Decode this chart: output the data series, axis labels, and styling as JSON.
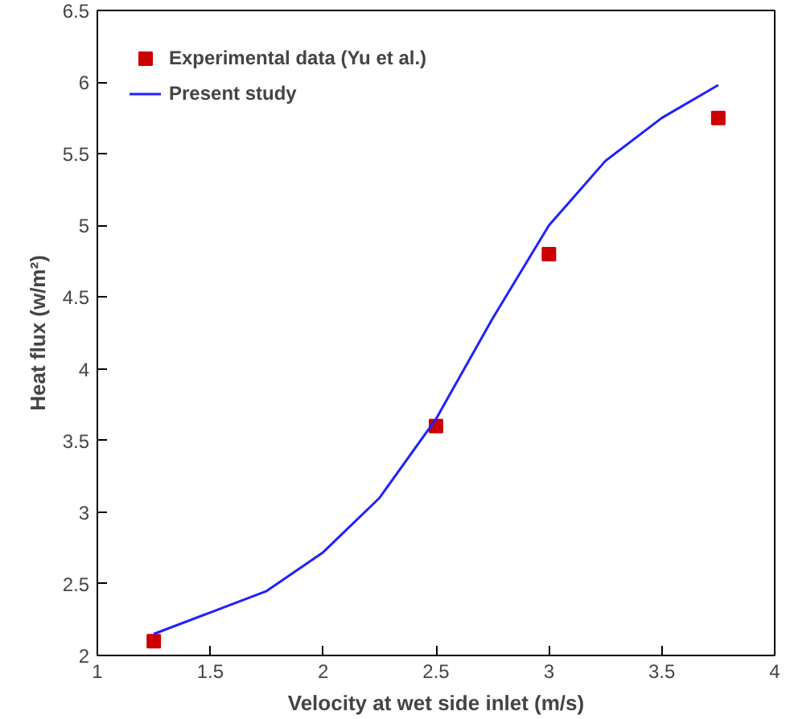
{
  "chart_data": {
    "type": "line",
    "xlabel": "Velocity at wet side inlet (m/s)",
    "ylabel": "Heat flux (w/m²)",
    "xlim": [
      1,
      4
    ],
    "xticks": [
      1,
      1.5,
      2,
      2.5,
      3,
      3.5,
      4
    ],
    "ylim": [
      2,
      6.5
    ],
    "yticks": [
      2,
      2.5,
      3,
      3.5,
      4,
      4.5,
      5,
      5.5,
      6,
      6.5
    ],
    "grid": false,
    "legend": "top left",
    "series": [
      {
        "name": "Experimental data (Yu et al.)",
        "type": "scatter",
        "marker": "square",
        "color": "#cc0000",
        "x": [
          1.25,
          2.5,
          3.0,
          3.75
        ],
        "values": [
          2.1,
          3.6,
          4.8,
          5.75
        ]
      },
      {
        "name": "Present study",
        "line_style": "solid",
        "color": "#2020ff",
        "x": [
          1.25,
          1.5,
          1.75,
          2.0,
          2.25,
          2.5,
          2.75,
          3.0,
          3.25,
          3.5,
          3.75
        ],
        "values": [
          2.15,
          2.3,
          2.45,
          2.72,
          3.1,
          3.65,
          4.35,
          5.0,
          5.45,
          5.75,
          5.98
        ]
      }
    ]
  }
}
